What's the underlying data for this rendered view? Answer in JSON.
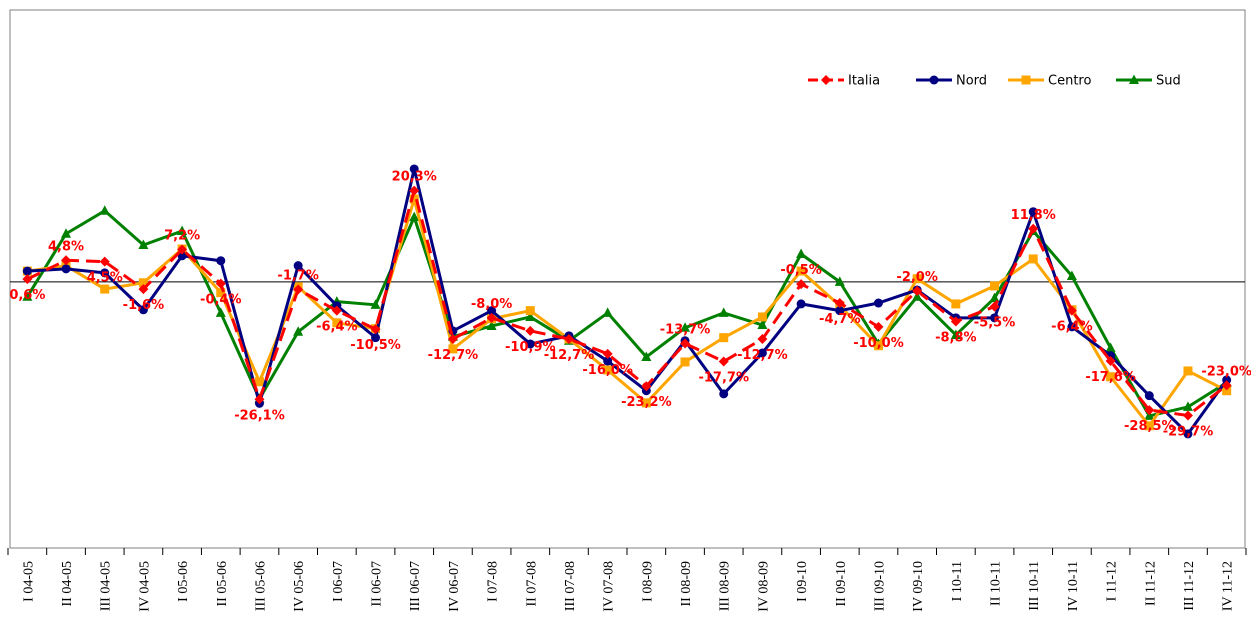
{
  "chart_data": {
    "type": "line",
    "categories": [
      "I 04-05",
      "II 04-05",
      "III 04-05",
      "IV 04-05",
      "I 05-06",
      "II 05-06",
      "III 05-06",
      "IV 05-06",
      "I 06-07",
      "II 06-07",
      "III 06-07",
      "IV 06-07",
      "I 07-08",
      "II 07-08",
      "III 07-08",
      "IV 07-08",
      "I 08-09",
      "II 08-09",
      "III 08-09",
      "IV 08-09",
      "I 09-10",
      "II 09-10",
      "III 09-10",
      "IV 09-10",
      "I 10-11",
      "II 10-11",
      "III 10-11",
      "IV 10-11",
      "I 11-12",
      "II 11-12",
      "III 11-12",
      "IV 11-12"
    ],
    "series": [
      {
        "name": "Italia",
        "color": "#ff0000",
        "values": [
          0.6,
          4.8,
          4.5,
          -1.6,
          7.2,
          -0.4,
          -26.1,
          -1.7,
          -6.4,
          -10.5,
          20.3,
          -12.7,
          -8.0,
          -10.9,
          -12.7,
          -16.0,
          -23.2,
          -13.7,
          -17.7,
          -12.7,
          -0.5,
          -4.7,
          -10.0,
          -2.0,
          -8.8,
          -5.5,
          11.8,
          -6.4,
          -17.6,
          -28.5,
          -29.7,
          -23.0
        ],
        "value_labels": [
          "0,6%",
          "4,8%",
          "4,5%",
          "-1,6%",
          "7,2%",
          "-0,4%",
          "-26,1%",
          "-1,7%",
          "-6,4%",
          "-10,5%",
          "20,3%",
          "-12,7%",
          "-8,0%",
          "-10,9%",
          "-12,7%",
          "-16,0%",
          "-23,2%",
          "-13,7%",
          "-17,7%",
          "-12,7%",
          "-0,5%",
          "-4,7%",
          "-10,0%",
          "-2,0%",
          "-8,8%",
          "-5,5%",
          "11,8%",
          "-6,4%",
          "-17,6%",
          "-28,5%",
          "-29,7%",
          "-23,0%"
        ]
      },
      {
        "name": "Nord",
        "color": "#000080",
        "values": [
          2.4,
          2.9,
          2.0,
          -6.2,
          5.8,
          4.7,
          -27.0,
          3.6,
          -5.3,
          -12.4,
          25.1,
          -10.9,
          -6.4,
          -13.8,
          -12.0,
          -17.6,
          -24.2,
          -13.1,
          -24.9,
          -15.8,
          -4.9,
          -6.4,
          -4.7,
          -1.8,
          -8.0,
          -8.0,
          15.6,
          -10.0,
          -16.4,
          -25.3,
          -33.8,
          -21.8
        ]
      },
      {
        "name": "Centro",
        "color": "#ffa500",
        "values": [
          2.4,
          3.6,
          -1.6,
          -0.2,
          7.3,
          -2.4,
          -22.2,
          -1.1,
          -9.1,
          -10.4,
          18.4,
          -14.9,
          -8.2,
          -6.4,
          -12.7,
          -19.6,
          -26.9,
          -17.8,
          -12.4,
          -7.8,
          2.4,
          -5.3,
          -14.2,
          0.7,
          -4.9,
          -0.9,
          5.1,
          -6.2,
          -21.1,
          -32.0,
          -19.8,
          -24.2
        ]
      },
      {
        "name": "Sud",
        "color": "#008000",
        "values": [
          -3.3,
          10.7,
          15.8,
          8.2,
          11.3,
          -6.9,
          -26.0,
          -11.1,
          -4.4,
          -5.1,
          14.4,
          -12.2,
          -9.8,
          -7.8,
          -13.1,
          -6.9,
          -16.7,
          -10.2,
          -6.9,
          -9.6,
          6.2,
          0.0,
          -13.8,
          -3.3,
          -11.8,
          -3.6,
          11.3,
          1.3,
          -14.7,
          -29.8,
          -27.8,
          -22.4
        ]
      }
    ],
    "ylim": [
      -58.5,
      60
    ],
    "legend": "upper right"
  }
}
